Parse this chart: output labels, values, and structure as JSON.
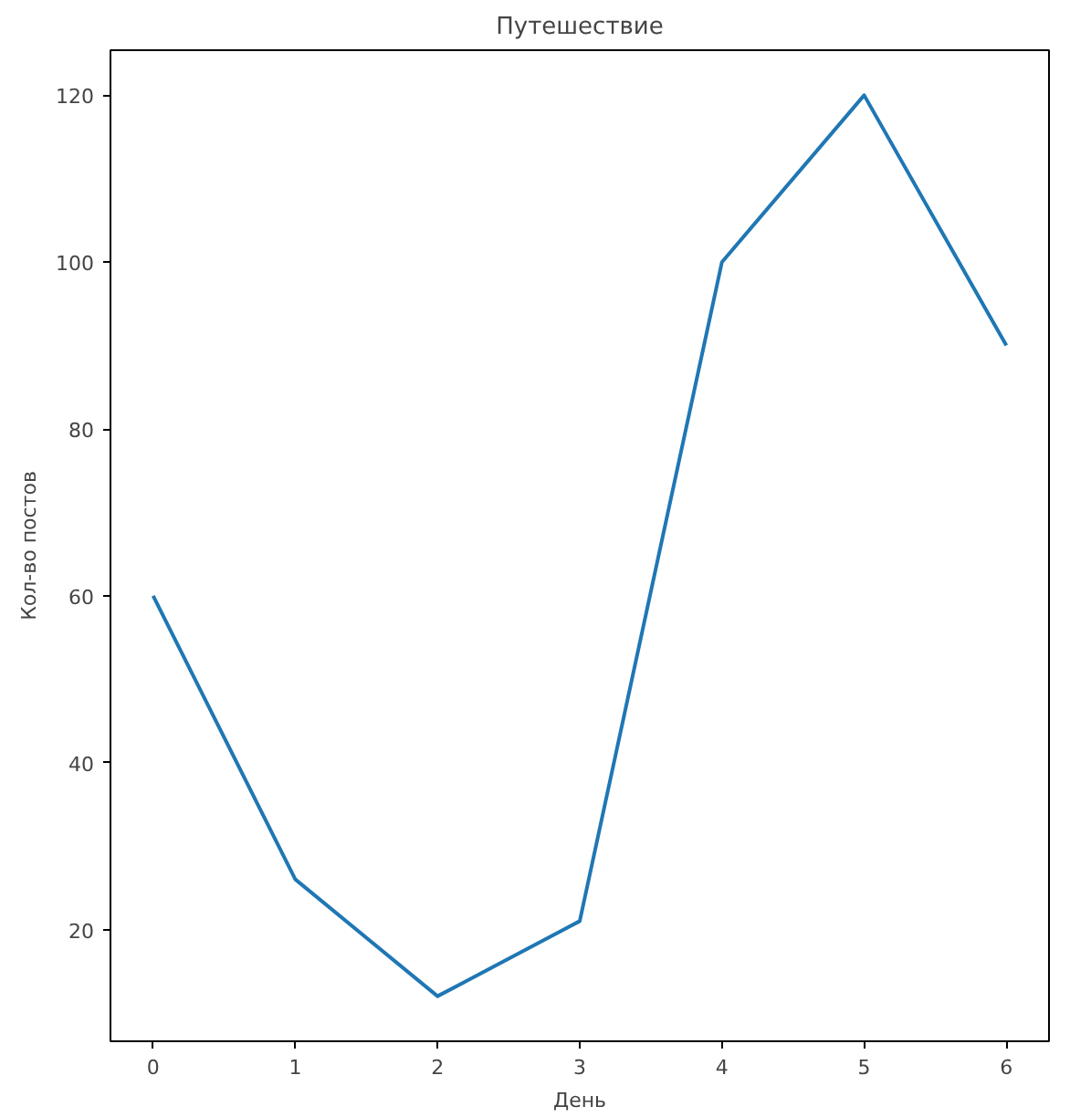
{
  "chart_data": {
    "type": "line",
    "title": "Путешествие",
    "xlabel": "День",
    "ylabel": "Кол-во постов",
    "x": [
      0,
      1,
      2,
      3,
      4,
      5,
      6
    ],
    "series": [
      {
        "color": "#1f77b4",
        "values": [
          60,
          26,
          12,
          21,
          100,
          120,
          90
        ]
      }
    ],
    "xlim": [
      -0.3,
      6.3
    ],
    "ylim": [
      6.6,
      125.4
    ],
    "xticks": [
      0,
      1,
      2,
      3,
      4,
      5,
      6
    ],
    "yticks": [
      20,
      40,
      60,
      80,
      100,
      120
    ],
    "grid": false,
    "marker": "none",
    "line_style": "solid"
  }
}
